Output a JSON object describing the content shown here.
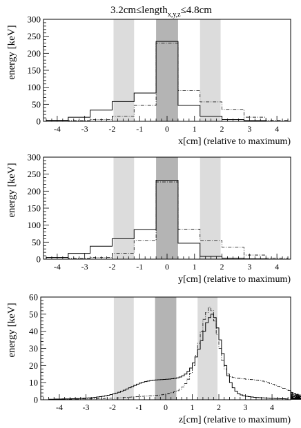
{
  "figure_title": "3.2cm≤length",
  "figure_title_sub": "x,y,z",
  "figure_title_end": "≤4.8cm",
  "chart_data": [
    {
      "type": "step",
      "id": "x",
      "xlabel": "x[cm] (relative to maximum)",
      "ylabel": "energy [keV]",
      "xlim": [
        -4.5,
        4.5
      ],
      "ylim": [
        0,
        300
      ],
      "xticks": [
        -4,
        -3,
        -2,
        -1,
        0,
        1,
        2,
        3,
        4
      ],
      "yticks": [
        0,
        50,
        100,
        150,
        200,
        250,
        300
      ],
      "bands": [
        {
          "x0": -1.95,
          "x1": -1.2,
          "shade": "#dcdcdc"
        },
        {
          "x0": -0.4,
          "x1": 0.4,
          "shade": "#b4b4b4"
        },
        {
          "x0": 1.2,
          "x1": 1.95,
          "shade": "#dcdcdc"
        }
      ],
      "series": [
        {
          "style": "solid",
          "edges": [
            -4.4,
            -3.6,
            -2.8,
            -2.0,
            -1.2,
            -0.4,
            0.4,
            1.2,
            2.0,
            2.8,
            3.6,
            4.4
          ],
          "values": [
            3,
            12,
            33,
            58,
            83,
            235,
            47,
            15,
            5,
            2,
            0
          ]
        },
        {
          "style": "dashdot",
          "edges": [
            -4.4,
            -3.6,
            -2.8,
            -2.0,
            -1.2,
            -0.4,
            0.4,
            1.2,
            2.0,
            2.8,
            3.6,
            4.4
          ],
          "values": [
            0,
            2,
            5,
            15,
            47,
            230,
            90,
            57,
            35,
            12,
            3
          ]
        }
      ]
    },
    {
      "type": "step",
      "id": "y",
      "xlabel": "y[cm] (relative to maximum)",
      "ylabel": "energy [keV]",
      "xlim": [
        -4.5,
        4.5
      ],
      "ylim": [
        0,
        300
      ],
      "xticks": [
        -4,
        -3,
        -2,
        -1,
        0,
        1,
        2,
        3,
        4
      ],
      "yticks": [
        0,
        50,
        100,
        150,
        200,
        250,
        300
      ],
      "bands": [
        {
          "x0": -1.95,
          "x1": -1.2,
          "shade": "#dcdcdc"
        },
        {
          "x0": -0.4,
          "x1": 0.4,
          "shade": "#b4b4b4"
        },
        {
          "x0": 1.2,
          "x1": 1.95,
          "shade": "#dcdcdc"
        }
      ],
      "series": [
        {
          "style": "solid",
          "edges": [
            -4.4,
            -3.6,
            -2.8,
            -2.0,
            -1.2,
            -0.4,
            0.4,
            1.2,
            2.0,
            2.8,
            3.6,
            4.4
          ],
          "values": [
            5,
            17,
            38,
            60,
            87,
            232,
            47,
            8,
            3,
            1,
            0
          ]
        },
        {
          "style": "dashdot",
          "edges": [
            -4.4,
            -3.6,
            -2.8,
            -2.0,
            -1.2,
            -0.4,
            0.4,
            1.2,
            2.0,
            2.8,
            3.6,
            4.4
          ],
          "values": [
            0,
            2,
            5,
            17,
            55,
            227,
            88,
            55,
            35,
            12,
            3
          ]
        }
      ]
    },
    {
      "type": "step",
      "id": "z",
      "xlabel": "z[cm] (relative to maximum)",
      "ylabel": "energy [keV]",
      "xlim": [
        -4.7,
        4.7
      ],
      "ylim": [
        0,
        60
      ],
      "xticks": [
        -4,
        -3,
        -2,
        -1,
        0,
        1,
        2,
        3,
        4
      ],
      "yticks": [
        0,
        10,
        20,
        30,
        40,
        50,
        60
      ],
      "bands": [
        {
          "x0": -1.95,
          "x1": -1.2,
          "shade": "#dcdcdc"
        },
        {
          "x0": -0.4,
          "x1": 0.4,
          "shade": "#b4b4b4"
        },
        {
          "x0": 1.2,
          "x1": 1.95,
          "shade": "#dcdcdc"
        }
      ],
      "series": [
        {
          "style": "solid",
          "bin_width": 0.1,
          "x_start": -4.4,
          "values": [
            0.3,
            0.3,
            0.4,
            0.4,
            0.4,
            0.5,
            0.5,
            0.5,
            0.6,
            0.6,
            0.7,
            0.7,
            0.8,
            0.9,
            1,
            1.1,
            1.2,
            1.4,
            1.6,
            1.8,
            2,
            2.3,
            2.6,
            3,
            3.4,
            3.9,
            4.4,
            5,
            5.6,
            6.3,
            7,
            7.7,
            8.4,
            9.1,
            9.7,
            10.2,
            10.6,
            10.9,
            11.2,
            11.4,
            11.6,
            11.7,
            11.8,
            11.9,
            12,
            12.1,
            12.3,
            12.5,
            12.8,
            13.3,
            14,
            15,
            16.5,
            18.5,
            21.5,
            25,
            29.5,
            34.5,
            40,
            45,
            48,
            50,
            48,
            42,
            35,
            27,
            20,
            14,
            10,
            7,
            5,
            3.5,
            2.8,
            2.3,
            2,
            1.8,
            1.6,
            1.4,
            1.3,
            1.2,
            1.1,
            1,
            0.9,
            0.8,
            0.8,
            0.7,
            0.7,
            0.6,
            0.6,
            0.5
          ]
        },
        {
          "style": "dashdot",
          "bin_width": 0.1,
          "x_start": -4.4,
          "values": [
            0.2,
            0.2,
            0.2,
            0.2,
            0.3,
            0.3,
            0.3,
            0.3,
            0.3,
            0.4,
            0.4,
            0.4,
            0.5,
            0.5,
            0.5,
            0.5,
            0.6,
            0.6,
            0.6,
            0.7,
            0.7,
            0.8,
            0.8,
            0.9,
            0.9,
            1,
            1.1,
            1.2,
            1.3,
            1.4,
            1.5,
            1.6,
            1.7,
            1.8,
            1.9,
            2,
            2.1,
            2.2,
            2.3,
            2.4,
            2.5,
            2.7,
            2.9,
            3.1,
            3.4,
            3.7,
            4.1,
            4.6,
            5.3,
            6.2,
            7.5,
            9.5,
            12,
            15.5,
            20,
            26,
            33,
            40,
            47,
            51,
            54,
            52,
            46,
            38,
            30,
            23,
            18,
            15,
            13.5,
            13,
            12.7,
            12.5,
            12.3,
            12.2,
            12,
            11.9,
            11.8,
            11.6,
            11.4,
            11.2,
            10.9,
            10.5,
            10,
            9.5,
            9,
            8.4,
            7.8,
            7.2,
            6.6,
            6,
            5.4,
            4.8,
            4.2,
            3.7,
            3.2,
            2.8,
            2.4,
            2.1,
            1.8,
            1.6,
            1.4,
            1.2,
            1,
            0.9,
            0.8,
            0.7,
            0.6,
            0.5,
            0.5,
            0.4,
            0.4,
            0.3,
            0.3,
            0.3,
            0.2,
            0.2,
            0.2,
            0.2
          ]
        }
      ]
    }
  ]
}
